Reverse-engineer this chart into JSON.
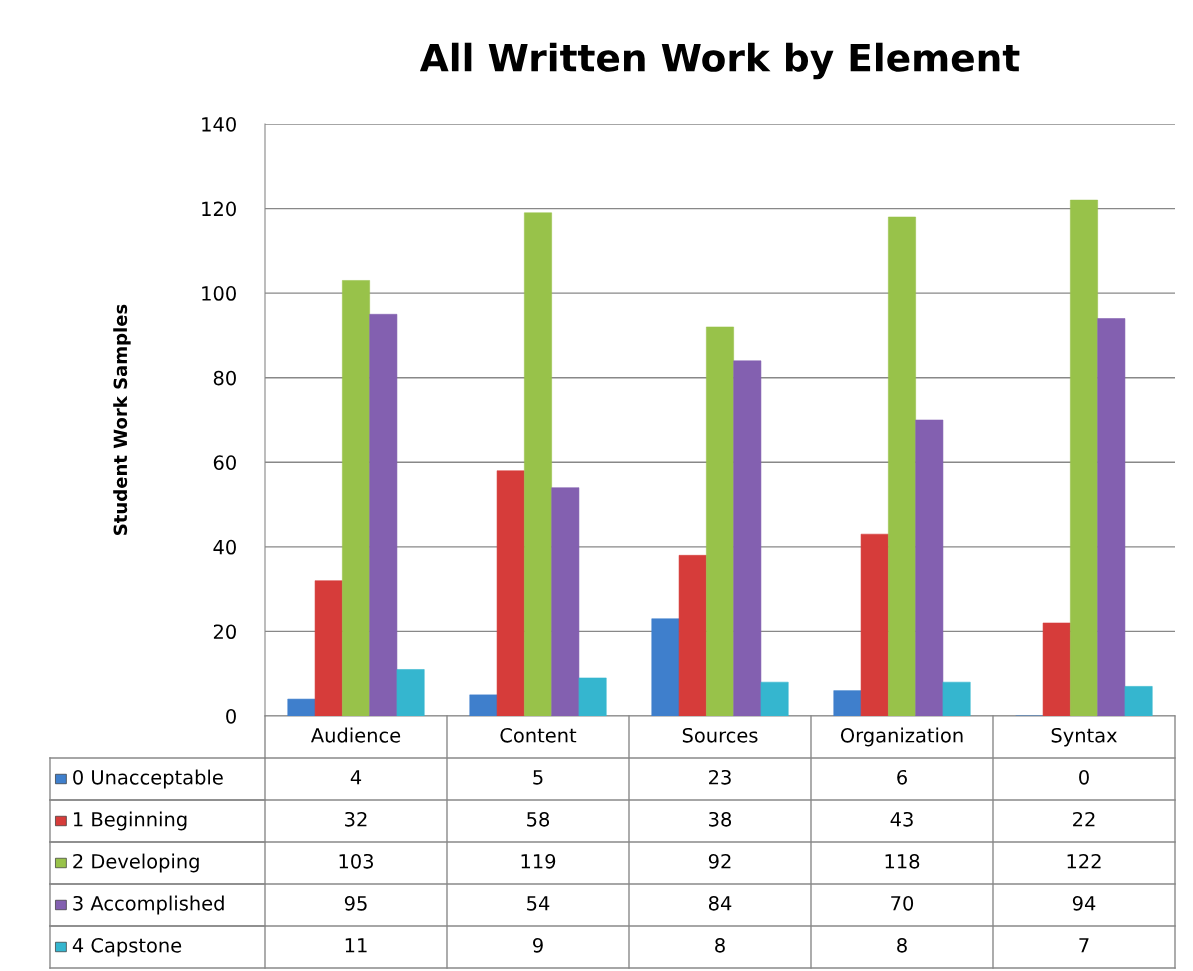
{
  "chart_data": {
    "type": "bar",
    "title": "All Written Work by Element",
    "ylabel": "Student Work Samples",
    "categories": [
      "Audience",
      "Content",
      "Sources",
      "Organization",
      "Syntax"
    ],
    "series": [
      {
        "name": "0 Unacceptable",
        "color": "#3f7fcc",
        "values": [
          4,
          5,
          23,
          6,
          0
        ]
      },
      {
        "name": "1 Beginning",
        "color": "#d63c3a",
        "values": [
          32,
          58,
          38,
          43,
          22
        ]
      },
      {
        "name": "2 Developing",
        "color": "#98c24a",
        "values": [
          103,
          119,
          92,
          118,
          122
        ]
      },
      {
        "name": "3 Accomplished",
        "color": "#8360b0",
        "values": [
          95,
          54,
          84,
          70,
          94
        ]
      },
      {
        "name": "4 Capstone",
        "color": "#35b6cf",
        "values": [
          11,
          9,
          8,
          8,
          7
        ]
      }
    ],
    "ylim": [
      0,
      140
    ],
    "yticks": [
      0,
      20,
      40,
      60,
      80,
      100,
      120,
      140
    ],
    "grid": "y",
    "legend": "bottom",
    "data_labels": true
  }
}
